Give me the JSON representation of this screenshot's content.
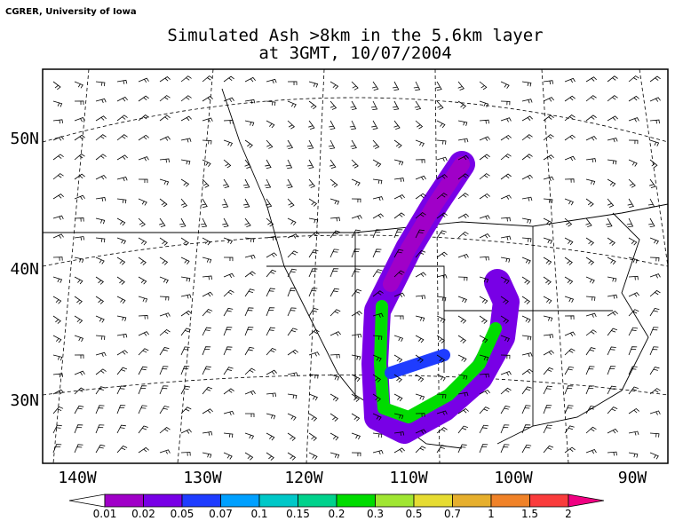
{
  "credit": "CGRER, University of Iowa",
  "title": [
    "Simulated Ash >8km in the 5.6km layer",
    "at 3GMT, 10/07/2004"
  ],
  "axes": {
    "x_labels": [
      "140W",
      "130W",
      "120W",
      "110W",
      "100W",
      "90W"
    ],
    "y_labels": [
      "50N",
      "40N",
      "30N"
    ]
  },
  "colorbar": {
    "levels": [
      0.01,
      0.02,
      0.05,
      0.07,
      0.1,
      0.15,
      0.2,
      0.3,
      0.5,
      0.7,
      1,
      1.5,
      2
    ],
    "colors": [
      "#a000c8",
      "#7800e6",
      "#1e3cff",
      "#00a0ff",
      "#00c8c8",
      "#00d28c",
      "#00dc00",
      "#a0e632",
      "#e6dc32",
      "#e6af2d",
      "#f08228",
      "#fa3c3c"
    ],
    "under_color": "#ffffff",
    "over_color": "#f00082"
  }
}
